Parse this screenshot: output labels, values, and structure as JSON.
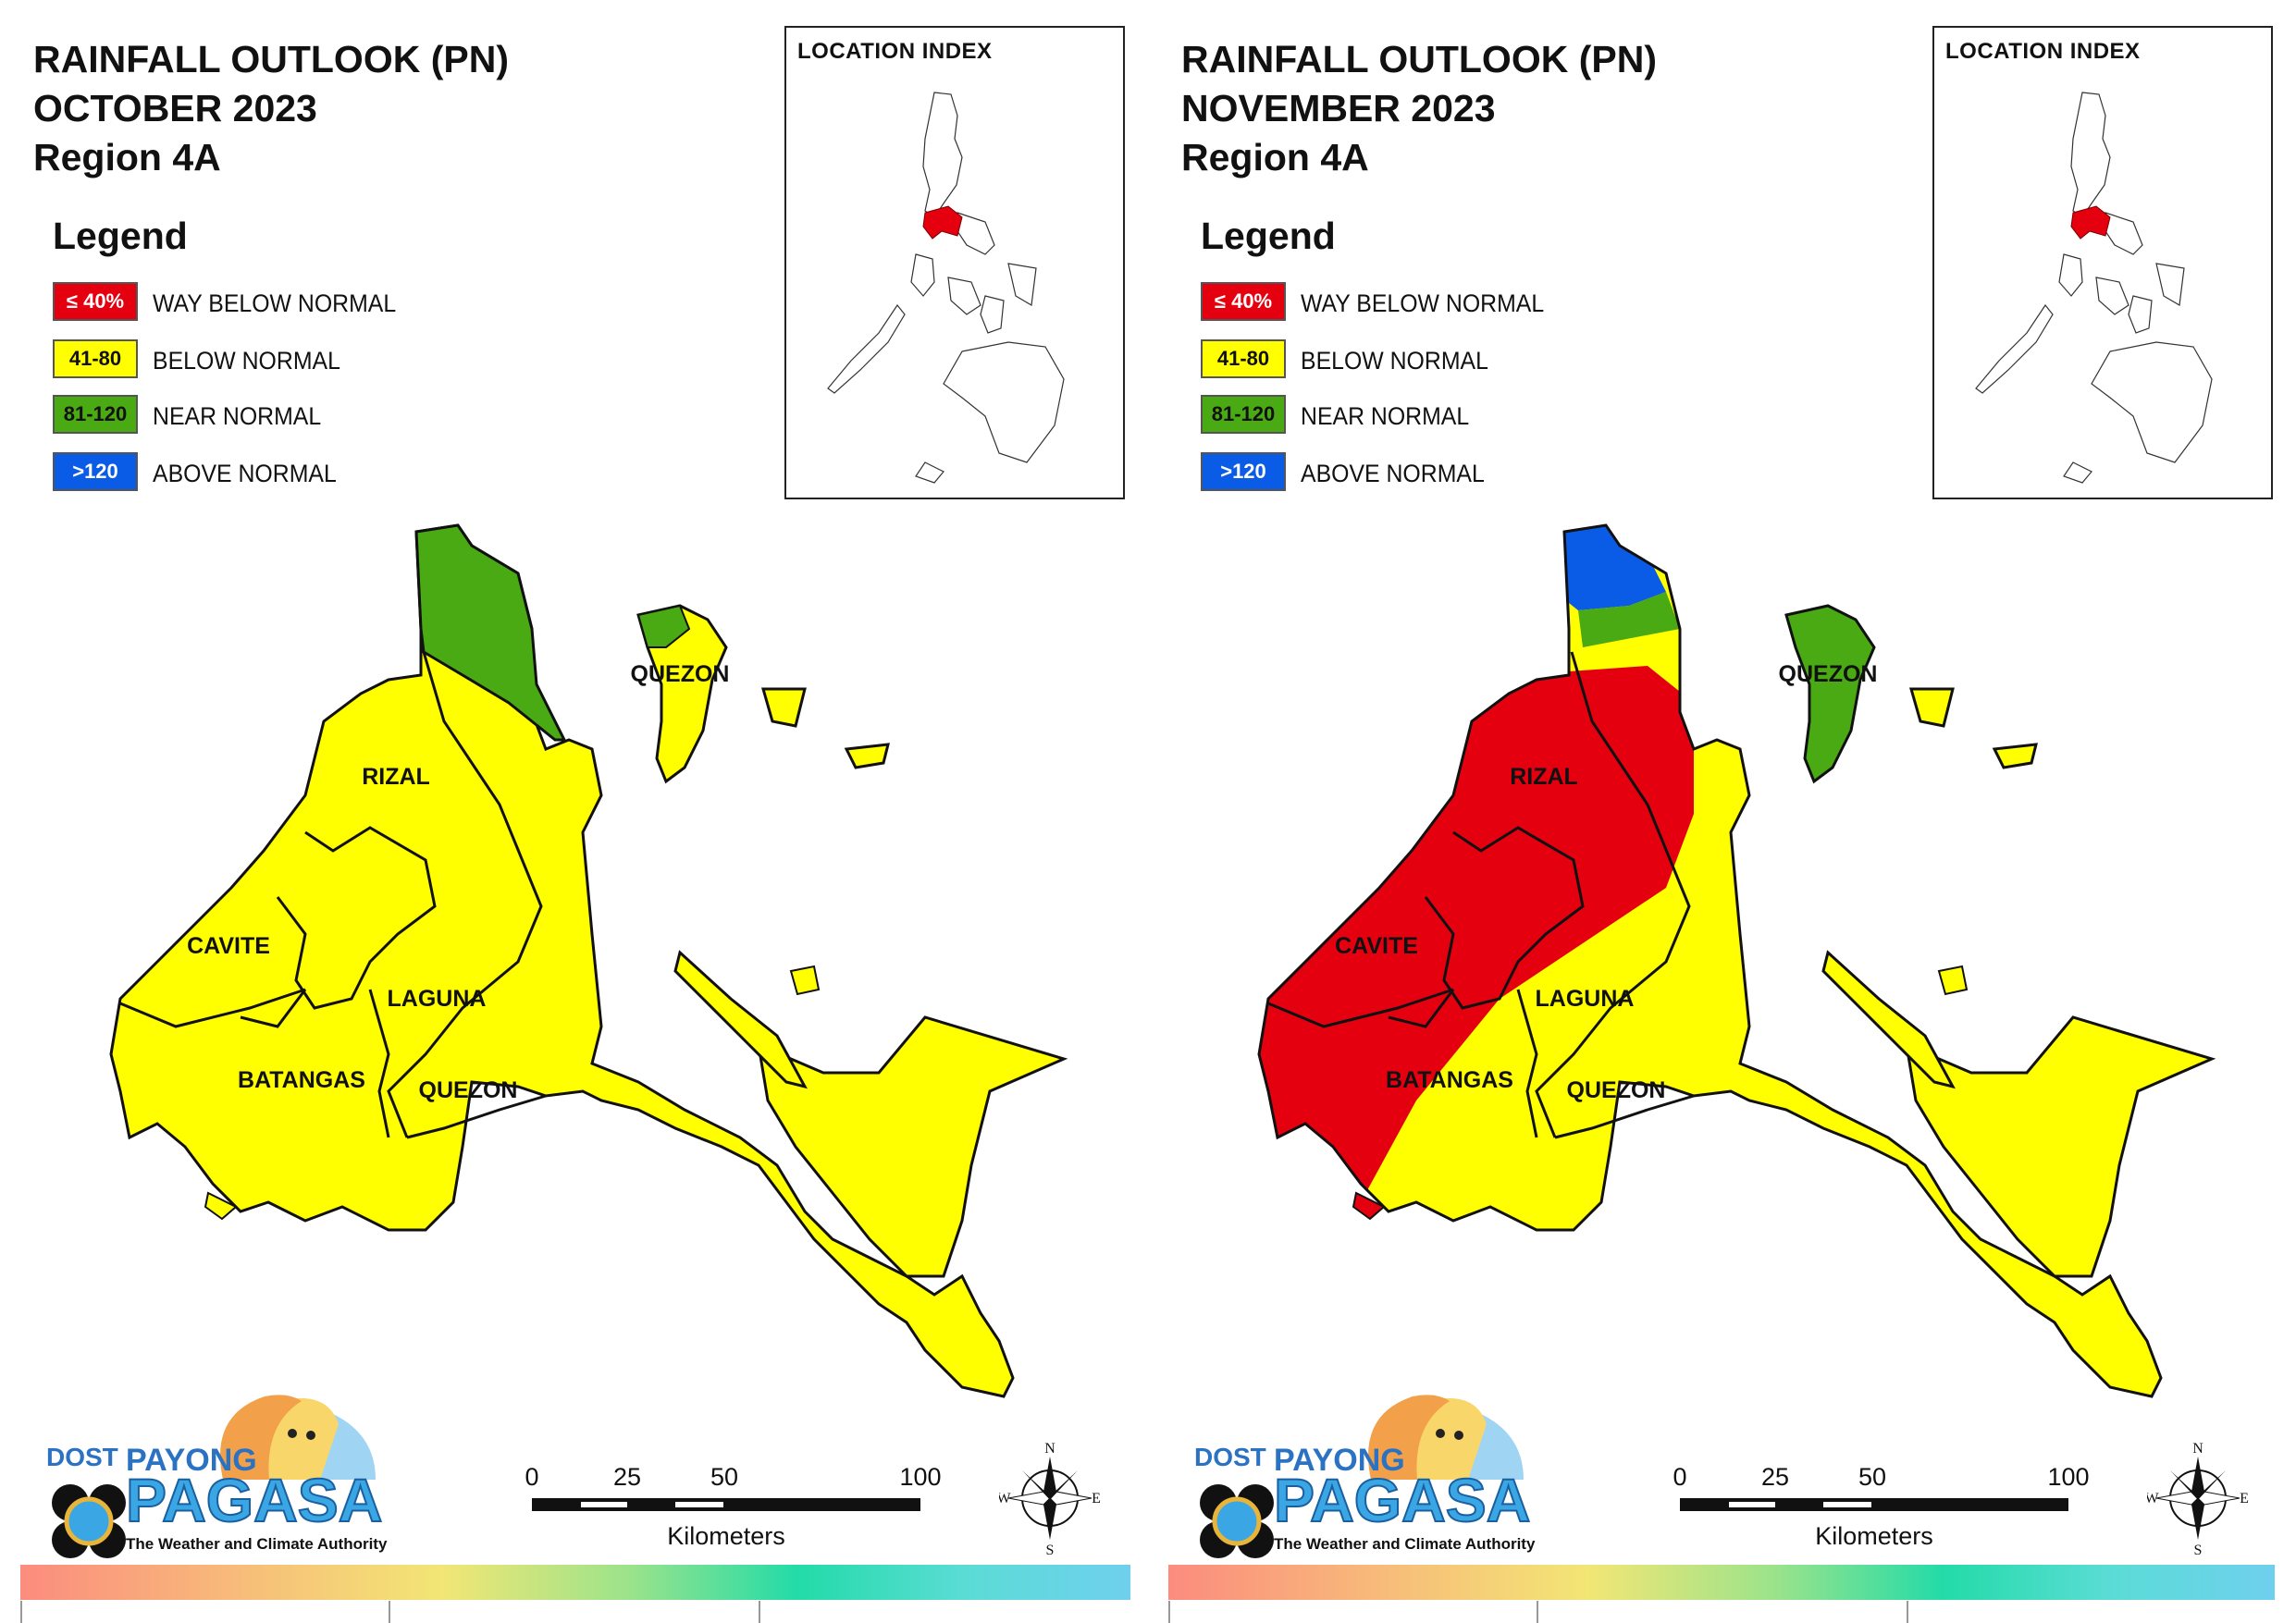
{
  "panels": [
    {
      "title_line1": "RAINFALL OUTLOOK (PN)",
      "title_line2": "OCTOBER 2023",
      "title_line3": "Region 4A"
    },
    {
      "title_line1": "RAINFALL OUTLOOK (PN)",
      "title_line2": "NOVEMBER 2023",
      "title_line3": "Region 4A"
    }
  ],
  "legend": {
    "title": "Legend",
    "items": [
      {
        "range": "≤ 40%",
        "label": "WAY BELOW NORMAL",
        "color": "#e4000f"
      },
      {
        "range": "41-80",
        "label": "BELOW NORMAL",
        "color": "#ffff00"
      },
      {
        "range": "81-120",
        "label": "NEAR NORMAL",
        "color": "#4aaa14"
      },
      {
        "range": ">120",
        "label": "ABOVE NORMAL",
        "color": "#0a5ce6"
      }
    ]
  },
  "inset": {
    "title": "LOCATION INDEX"
  },
  "regions": {
    "quezon_north": "QUEZON",
    "rizal": "RIZAL",
    "cavite": "CAVITE",
    "laguna": "LAGUNA",
    "batangas": "BATANGAS",
    "quezon_south": "QUEZON"
  },
  "scale": {
    "ticks": [
      "0",
      "25",
      "50",
      "100"
    ],
    "unit": "Kilometers"
  },
  "compass": {
    "n": "N",
    "s": "S",
    "e": "E",
    "w": "W"
  },
  "logo": {
    "dost": "DOST",
    "payong": "PAYONG",
    "pagasa": "PAGASA",
    "tagline": "The Weather and Climate Authority"
  }
}
